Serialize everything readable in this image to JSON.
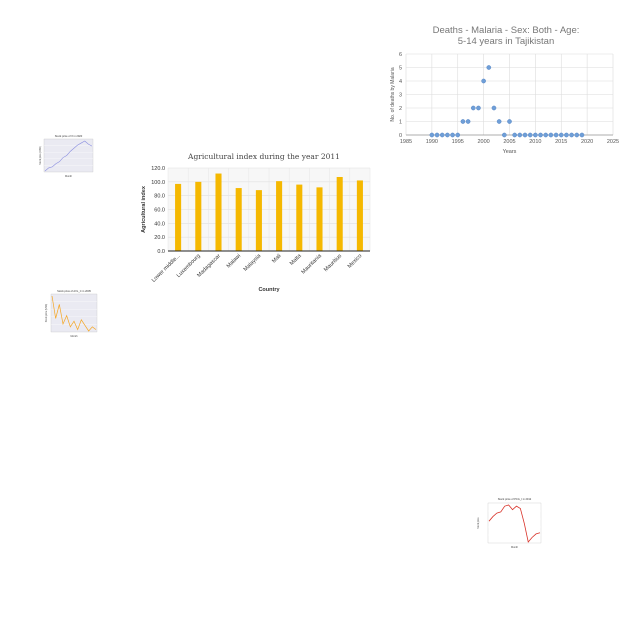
{
  "chart_data": [
    {
      "id": "scatter_malaria",
      "type": "scatter",
      "title": "Deaths - Malaria - Sex: Both - Age: 5-14 years in Tajikistan",
      "xlabel": "Years",
      "ylabel": "No. of deaths by Malaria",
      "xlim": [
        1985,
        2025
      ],
      "ylim": [
        0,
        6
      ],
      "xticks": [
        "1985",
        "1990",
        "1995",
        "2000",
        "2005",
        "2010",
        "2015",
        "2020",
        "2025"
      ],
      "yticks": [
        "0",
        "1",
        "2",
        "3",
        "4",
        "5",
        "6"
      ],
      "grid": true,
      "color": "#6f9fd8",
      "x": [
        1990,
        1991,
        1992,
        1993,
        1994,
        1995,
        1996,
        1997,
        1998,
        1999,
        2000,
        2001,
        2002,
        2003,
        2004,
        2005,
        2006,
        2007,
        2008,
        2009,
        2010,
        2011,
        2012,
        2013,
        2014,
        2015,
        2016,
        2017,
        2018,
        2019
      ],
      "y": [
        0,
        0,
        0,
        0,
        0,
        0,
        1,
        1,
        2,
        2,
        4,
        5,
        2,
        1,
        0,
        1,
        0,
        0,
        0,
        0,
        0,
        0,
        0,
        0,
        0,
        0,
        0,
        0,
        0,
        0
      ]
    },
    {
      "id": "bar_agri",
      "type": "bar",
      "title": "Agricultural index during the year 2011",
      "xlabel": "Country",
      "ylabel": "Agricultural index",
      "ylim": [
        0,
        120
      ],
      "yticks": [
        "0.0",
        "20.0",
        "40.0",
        "60.0",
        "80.0",
        "100.0",
        "120.0"
      ],
      "grid": true,
      "color": "#f5b800",
      "categories": [
        "Lower middle...",
        "Luxembourg",
        "Madagascar",
        "Malawi",
        "Malaysia",
        "Mali",
        "Malta",
        "Mauritania",
        "Mauritius",
        "Mexico"
      ],
      "values": [
        97,
        100,
        112,
        91,
        88,
        101,
        96,
        92,
        107,
        102
      ]
    },
    {
      "id": "line_small1",
      "type": "line",
      "title": "Stock price of X in 2020",
      "xlabel": "Month",
      "ylabel": "Stock price (USD)",
      "color": "#8b8fe0",
      "values": [
        2,
        5,
        6,
        9,
        11,
        15,
        17,
        21,
        24,
        27,
        29,
        31,
        28,
        26
      ]
    },
    {
      "id": "line_small2",
      "type": "line",
      "title": "Stock price of AXL_C in 2005",
      "xlabel": "Month",
      "ylabel": "Stock price (USD)",
      "color": "#f5a623",
      "values": [
        30,
        14,
        24,
        10,
        16,
        8,
        12,
        6,
        13,
        9,
        5,
        8,
        6
      ]
    },
    {
      "id": "line_small3",
      "type": "line",
      "title": "Stock price of PCG_I in 2012",
      "xlabel": "Month",
      "ylabel": "Stock price",
      "color": "#d9342b",
      "values": [
        20,
        24,
        27,
        28,
        33,
        34,
        30,
        33,
        31,
        18,
        2,
        6,
        9,
        10
      ]
    }
  ]
}
